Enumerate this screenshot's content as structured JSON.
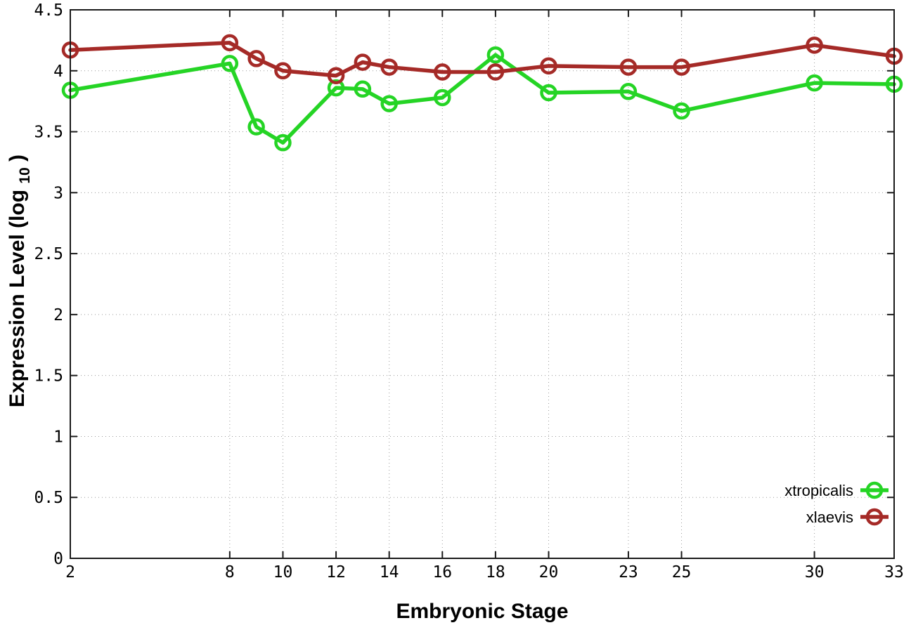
{
  "figure": {
    "background": "#ffffff",
    "border_color": "#1a1a1a",
    "grid_color": "#9a9a9a",
    "text_color": "#000000"
  },
  "chart_data": {
    "type": "line",
    "title": "",
    "xlabel": "Embryonic Stage",
    "ylabel": "Expression Level (log10)",
    "ylabel_base": "Expression Level (log",
    "ylabel_sub": "10",
    "ylabel_close": ")",
    "xlim": [
      2,
      33
    ],
    "ylim": [
      0,
      4.5
    ],
    "grid": true,
    "legend_position": "inside bottom-right",
    "x_ticks": [
      2,
      8,
      10,
      12,
      14,
      16,
      18,
      20,
      23,
      25,
      30,
      33
    ],
    "x_tick_labels": [
      "2",
      "8",
      "10",
      "12",
      "14",
      "16",
      "18",
      "20",
      "23",
      "25",
      "30",
      "33"
    ],
    "y_ticks": [
      0,
      0.5,
      1,
      1.5,
      2,
      2.5,
      3,
      3.5,
      4,
      4.5
    ],
    "y_tick_labels": [
      "0",
      "0.5",
      "1",
      "1.5",
      "2",
      "2.5",
      "3",
      "3.5",
      "4",
      "4.5"
    ],
    "x": [
      2,
      8,
      9,
      10,
      12,
      13,
      14,
      16,
      18,
      20,
      23,
      25,
      30,
      33
    ],
    "series": [
      {
        "name": "xtropicalis",
        "color": "#25d425",
        "values": [
          3.84,
          4.06,
          3.54,
          3.41,
          3.86,
          3.85,
          3.73,
          3.78,
          4.13,
          3.82,
          3.83,
          3.67,
          3.9,
          3.89
        ]
      },
      {
        "name": "xlaevis",
        "color": "#a52a27",
        "values": [
          4.17,
          4.23,
          4.1,
          4.0,
          3.96,
          4.07,
          4.03,
          3.99,
          3.99,
          4.04,
          4.03,
          4.03,
          4.21,
          4.12
        ]
      }
    ]
  }
}
